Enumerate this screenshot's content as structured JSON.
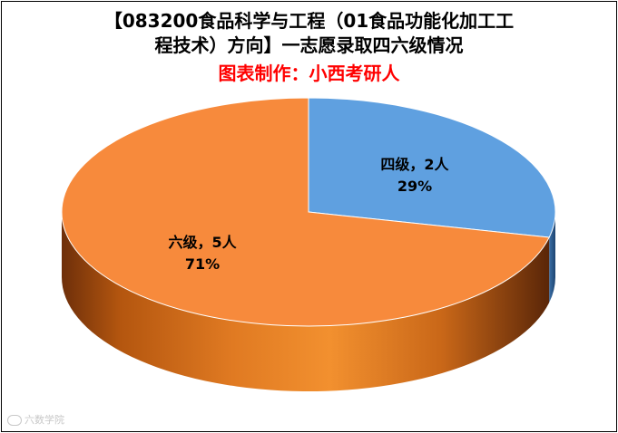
{
  "title": {
    "line1": "【083200食品科学与工程（01食品功能化加工工",
    "line2": "程技术）方向】一志愿录取四六级情况",
    "credit": "图表制作：小西考研人"
  },
  "colors": {
    "credit": "#ff0000",
    "blue": "#5fa0e0",
    "orange": "#f78a3c"
  },
  "chart_data": {
    "type": "pie",
    "style": "3d",
    "slices": [
      {
        "name": "四级",
        "count_label": "2人",
        "value": 2,
        "percent": "29%",
        "color": "#5fa0e0"
      },
      {
        "name": "六级",
        "count_label": "5人",
        "value": 5,
        "percent": "71%",
        "color": "#f78a3c"
      }
    ]
  },
  "watermark": {
    "text": "六数学院"
  }
}
